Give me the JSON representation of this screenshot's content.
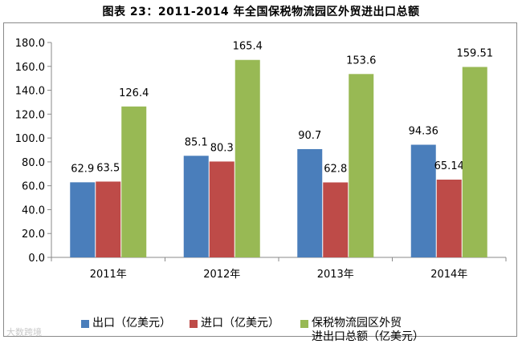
{
  "title": "图表 23：2011-2014 年全国保税物流园区外贸进出口总额",
  "watermark": "大数跨境",
  "chart_data": {
    "type": "bar",
    "categories": [
      "2011年",
      "2012年",
      "2013年",
      "2014年"
    ],
    "series": [
      {
        "name": "出口（亿美元）",
        "color": "#4a7ebb",
        "values": [
          62.9,
          85.1,
          90.7,
          94.36
        ],
        "labels": [
          "62.9",
          "85.1",
          "90.7",
          "94.36"
        ]
      },
      {
        "name": "进口（亿美元）",
        "color": "#be4b48",
        "values": [
          63.5,
          80.3,
          62.8,
          65.14
        ],
        "labels": [
          "63.5",
          "80.3",
          "62.8",
          "65.14"
        ]
      },
      {
        "name": "保税物流园区外贸\n进出口总额（亿美元）",
        "color": "#98b954",
        "values": [
          126.4,
          165.4,
          153.6,
          159.51
        ],
        "labels": [
          "126.4",
          "165.4",
          "153.6",
          "159.51"
        ]
      }
    ],
    "yticks": [
      "0.0",
      "20.0",
      "40.0",
      "60.0",
      "80.0",
      "100.0",
      "120.0",
      "140.0",
      "160.0",
      "180.0"
    ],
    "ylim": [
      0,
      180
    ],
    "grid": false,
    "legend_position": "bottom"
  }
}
